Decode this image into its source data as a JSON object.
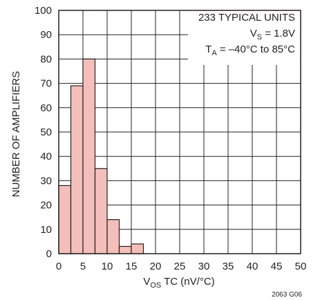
{
  "chart_data": {
    "type": "bar",
    "bin_edges": [
      0,
      2.5,
      5,
      7.5,
      10,
      12.5,
      15,
      17.5
    ],
    "values": [
      28,
      69,
      80,
      35,
      14,
      3,
      4
    ],
    "x_ticks": [
      0,
      5,
      10,
      15,
      20,
      25,
      30,
      35,
      40,
      45,
      50
    ],
    "y_ticks": [
      0,
      10,
      20,
      30,
      40,
      50,
      60,
      70,
      80,
      90,
      100
    ],
    "xlim": [
      0,
      50
    ],
    "ylim": [
      0,
      100
    ],
    "xgrid_step": 5,
    "ygrid_step": 10,
    "grid": true,
    "bar_color": "#f4bfbb",
    "xlabel": {
      "main": "V",
      "sub": "OS",
      "rest": " TC (nV/°C)"
    },
    "ylabel": "NUMBER OF AMPLIFIERS",
    "annotations": {
      "line1": "233 TYPICAL UNITS",
      "line2": {
        "main": "V",
        "sub": "S",
        "rest": " = 1.8V"
      },
      "line3": {
        "main": "T",
        "sub": "A",
        "rest": " = –40°C to 85°C"
      }
    },
    "figure_id": "2063 G06"
  }
}
